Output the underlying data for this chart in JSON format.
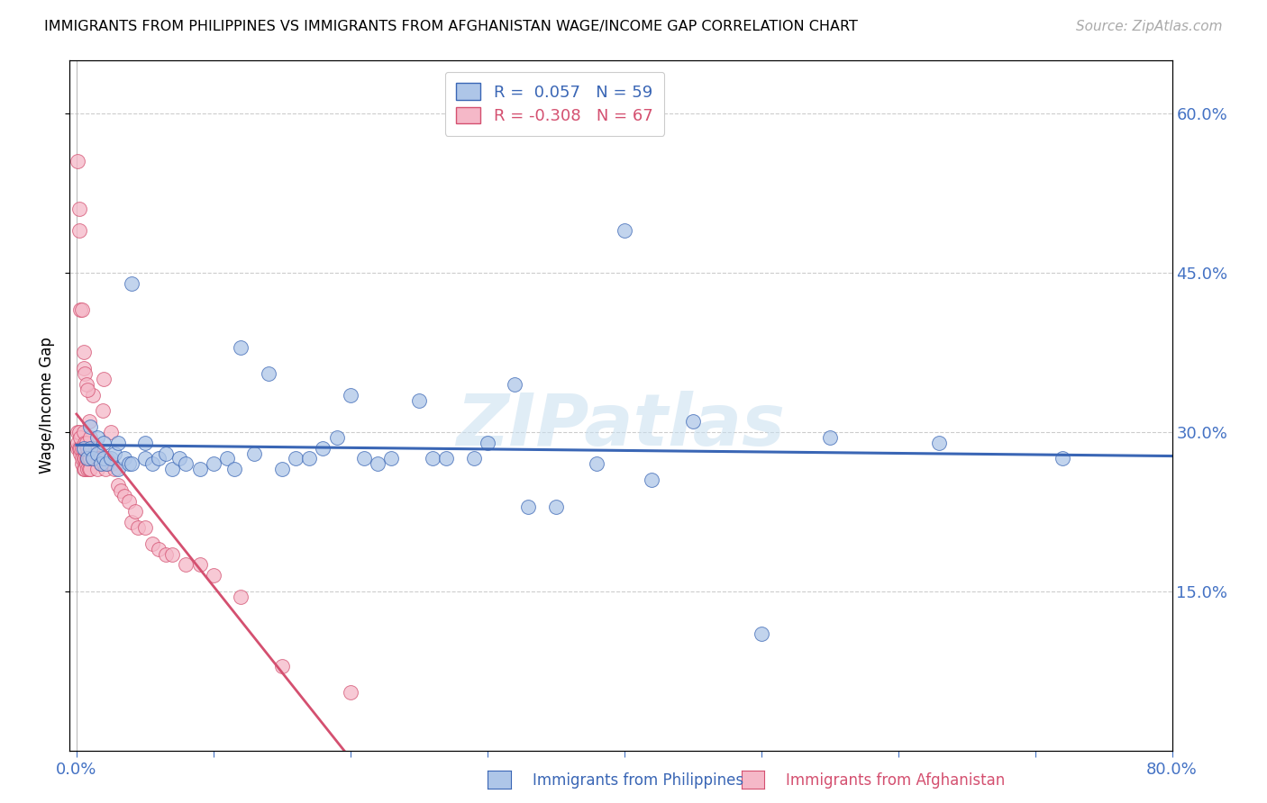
{
  "title": "IMMIGRANTS FROM PHILIPPINES VS IMMIGRANTS FROM AFGHANISTAN WAGE/INCOME GAP CORRELATION CHART",
  "source": "Source: ZipAtlas.com",
  "ylabel": "Wage/Income Gap",
  "xlim": [
    -0.005,
    0.8
  ],
  "ylim": [
    0.0,
    0.65
  ],
  "yticks": [
    0.15,
    0.3,
    0.45,
    0.6
  ],
  "ytick_labels": [
    "15.0%",
    "30.0%",
    "45.0%",
    "60.0%"
  ],
  "legend_labels": [
    "Immigrants from Philippines",
    "Immigrants from Afghanistan"
  ],
  "r_philippines": 0.057,
  "n_philippines": 59,
  "r_afghanistan": -0.308,
  "n_afghanistan": 67,
  "philippines_color": "#aec6e8",
  "afghanistan_color": "#f5b8c8",
  "philippines_line_color": "#3a66b5",
  "afghanistan_line_color": "#d45070",
  "watermark": "ZIPatlas",
  "background_color": "#ffffff",
  "philippines_x": [
    0.005,
    0.008,
    0.01,
    0.01,
    0.012,
    0.015,
    0.015,
    0.018,
    0.02,
    0.02,
    0.022,
    0.025,
    0.028,
    0.03,
    0.03,
    0.035,
    0.038,
    0.04,
    0.04,
    0.05,
    0.05,
    0.055,
    0.06,
    0.065,
    0.07,
    0.075,
    0.08,
    0.09,
    0.1,
    0.11,
    0.115,
    0.12,
    0.13,
    0.14,
    0.15,
    0.16,
    0.17,
    0.18,
    0.19,
    0.2,
    0.21,
    0.22,
    0.23,
    0.25,
    0.26,
    0.27,
    0.29,
    0.3,
    0.32,
    0.33,
    0.35,
    0.38,
    0.4,
    0.42,
    0.45,
    0.5,
    0.55,
    0.63,
    0.72
  ],
  "philippines_y": [
    0.285,
    0.275,
    0.285,
    0.305,
    0.275,
    0.28,
    0.295,
    0.27,
    0.275,
    0.29,
    0.27,
    0.275,
    0.28,
    0.265,
    0.29,
    0.275,
    0.27,
    0.27,
    0.44,
    0.275,
    0.29,
    0.27,
    0.275,
    0.28,
    0.265,
    0.275,
    0.27,
    0.265,
    0.27,
    0.275,
    0.265,
    0.38,
    0.28,
    0.355,
    0.265,
    0.275,
    0.275,
    0.285,
    0.295,
    0.335,
    0.275,
    0.27,
    0.275,
    0.33,
    0.275,
    0.275,
    0.275,
    0.29,
    0.345,
    0.23,
    0.23,
    0.27,
    0.49,
    0.255,
    0.31,
    0.11,
    0.295,
    0.29,
    0.275
  ],
  "afghanistan_x": [
    0.001,
    0.001,
    0.001,
    0.002,
    0.002,
    0.003,
    0.003,
    0.003,
    0.004,
    0.004,
    0.004,
    0.005,
    0.005,
    0.005,
    0.005,
    0.006,
    0.006,
    0.006,
    0.007,
    0.007,
    0.007,
    0.008,
    0.008,
    0.008,
    0.009,
    0.009,
    0.009,
    0.01,
    0.01,
    0.01,
    0.011,
    0.012,
    0.012,
    0.013,
    0.014,
    0.015,
    0.015,
    0.016,
    0.017,
    0.018,
    0.019,
    0.02,
    0.02,
    0.021,
    0.022,
    0.023,
    0.025,
    0.026,
    0.028,
    0.03,
    0.032,
    0.035,
    0.038,
    0.04,
    0.043,
    0.045,
    0.05,
    0.055,
    0.06,
    0.065,
    0.07,
    0.08,
    0.09,
    0.1,
    0.12,
    0.15,
    0.2
  ],
  "afghanistan_y": [
    0.285,
    0.29,
    0.3,
    0.285,
    0.3,
    0.28,
    0.285,
    0.295,
    0.27,
    0.275,
    0.285,
    0.265,
    0.275,
    0.285,
    0.3,
    0.265,
    0.275,
    0.29,
    0.27,
    0.275,
    0.29,
    0.265,
    0.275,
    0.285,
    0.265,
    0.275,
    0.31,
    0.265,
    0.275,
    0.295,
    0.285,
    0.275,
    0.335,
    0.275,
    0.285,
    0.265,
    0.275,
    0.275,
    0.275,
    0.27,
    0.32,
    0.27,
    0.35,
    0.265,
    0.275,
    0.27,
    0.3,
    0.27,
    0.265,
    0.25,
    0.245,
    0.24,
    0.235,
    0.215,
    0.225,
    0.21,
    0.21,
    0.195,
    0.19,
    0.185,
    0.185,
    0.175,
    0.175,
    0.165,
    0.145,
    0.08,
    0.055
  ],
  "afg_outliers_x": [
    0.001,
    0.002,
    0.002,
    0.003,
    0.004,
    0.005,
    0.005,
    0.006,
    0.007,
    0.008
  ],
  "afg_outliers_y": [
    0.555,
    0.49,
    0.51,
    0.415,
    0.415,
    0.36,
    0.375,
    0.355,
    0.345,
    0.34
  ]
}
